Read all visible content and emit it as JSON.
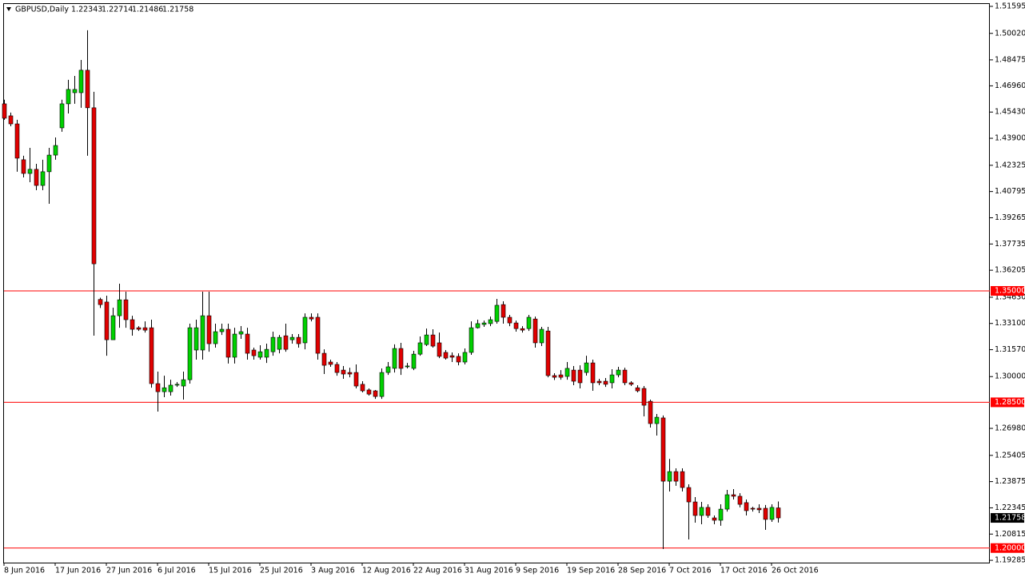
{
  "chart_data": {
    "type": "candlestick",
    "header": {
      "symbol": "GBPUSD,Daily",
      "values": [
        {
          "value": 1.22343,
          "label": "1.22343"
        },
        {
          "value": 1.22714,
          "label": "1.22714"
        },
        {
          "value": 1.21486,
          "label": "1.21486"
        },
        {
          "value": 1.21758,
          "label": "1.21758"
        }
      ]
    },
    "categories": [
      "8 Jun 2016",
      null,
      null,
      null,
      null,
      null,
      null,
      null,
      "17 Jun 2016",
      null,
      null,
      null,
      null,
      null,
      null,
      null,
      "27 Jun 2016",
      null,
      null,
      null,
      null,
      null,
      null,
      null,
      "6 Jul 2016",
      null,
      null,
      null,
      null,
      null,
      null,
      null,
      "15 Jul 2016",
      null,
      null,
      null,
      null,
      null,
      null,
      null,
      "25 Jul 2016",
      null,
      null,
      null,
      null,
      null,
      null,
      null,
      "3 Aug 2016",
      null,
      null,
      null,
      null,
      null,
      null,
      null,
      "12 Aug 2016",
      null,
      null,
      null,
      null,
      null,
      null,
      null,
      "22 Aug 2016",
      null,
      null,
      null,
      null,
      null,
      null,
      null,
      "31 Aug 2016",
      null,
      null,
      null,
      null,
      null,
      null,
      null,
      "9 Sep 2016",
      null,
      null,
      null,
      null,
      null,
      null,
      null,
      "19 Sep 2016",
      null,
      null,
      null,
      null,
      null,
      null,
      null,
      "28 Sep 2016",
      null,
      null,
      null,
      null,
      null,
      null,
      null,
      "7 Oct 2016",
      null,
      null,
      null,
      null,
      null,
      null,
      null,
      "17 Oct 2016",
      null,
      null,
      null,
      null,
      null,
      null,
      null,
      "26 Oct 2016",
      null
    ],
    "open": [
      1.4591,
      1.4521,
      1.4474,
      1.4265,
      1.4185,
      1.4209,
      1.4115,
      1.4195,
      1.4292,
      1.4451,
      1.4591,
      1.4656,
      1.4656,
      1.4787,
      1.4568,
      1.345,
      1.3435,
      1.3215,
      1.3355,
      1.3448,
      1.3332,
      1.3285,
      1.3285,
      1.3285,
      1.2959,
      1.2912,
      1.2912,
      1.295,
      1.2945,
      1.2982,
      1.3155,
      1.3155,
      1.3355,
      1.3192,
      1.3262,
      1.3276,
      1.3113,
      1.3248,
      1.3248,
      1.3155,
      1.3113,
      1.3113,
      1.3145,
      1.3159,
      1.3238,
      1.3215,
      1.3229,
      1.3197,
      1.3346,
      1.3346,
      1.3136,
      1.3085,
      1.3071,
      1.3038,
      1.3024,
      1.3024,
      1.2955,
      1.2922,
      1.2917,
      1.2884,
      1.3024,
      1.3048,
      1.3164,
      1.3057,
      1.3048,
      1.3131,
      1.3187,
      1.3243,
      1.3197,
      1.3141,
      1.3122,
      1.3118,
      1.3085,
      1.3141,
      1.3285,
      1.3304,
      1.3309,
      1.3322,
      1.342,
      1.3346,
      1.3313,
      1.328,
      1.328,
      1.3336,
      1.3197,
      1.3266,
      1.3006,
      1.301,
      1.3001,
      1.3038,
      1.3038,
      1.3024,
      1.308,
      1.2973,
      1.2973,
      1.2964,
      1.301,
      1.3038,
      1.2964,
      1.2935,
      1.2931,
      1.2856,
      1.2726,
      1.2759,
      1.239,
      1.2446,
      1.2446,
      1.2353,
      1.2269,
      1.219,
      1.2237,
      1.2176,
      1.2162,
      1.2227,
      1.2311,
      1.2302,
      1.2265,
      1.2232,
      1.2232,
      1.2232,
      1.2167,
      1.22343
    ],
    "high": [
      1.4615,
      1.454,
      1.4498,
      1.4288,
      1.4334,
      1.4241,
      1.4265,
      1.4334,
      1.4395,
      1.4615,
      1.4731,
      1.4754,
      1.4847,
      1.502,
      1.4661,
      1.346,
      1.3472,
      1.3402,
      1.3542,
      1.3495,
      1.3355,
      1.3294,
      1.3322,
      1.3332,
      1.3029,
      1.3005,
      1.2982,
      1.2968,
      1.3029,
      1.3309,
      1.3332,
      1.3495,
      1.3495,
      1.3309,
      1.3309,
      1.3309,
      1.3285,
      1.3295,
      1.3285,
      1.3169,
      1.3183,
      1.3192,
      1.3262,
      1.3243,
      1.3309,
      1.3248,
      1.3248,
      1.3369,
      1.3369,
      1.3369,
      1.3159,
      1.3099,
      1.3085,
      1.3062,
      1.3052,
      1.3071,
      1.2973,
      1.2931,
      1.2922,
      1.3048,
      1.3085,
      1.3188,
      1.3197,
      1.308,
      1.315,
      1.3234,
      1.328,
      1.3276,
      1.3257,
      1.3155,
      1.3141,
      1.3136,
      1.3164,
      1.3322,
      1.3332,
      1.3327,
      1.335,
      1.3453,
      1.3439,
      1.336,
      1.3327,
      1.3294,
      1.336,
      1.335,
      1.329,
      1.329,
      1.302,
      1.3038,
      1.3085,
      1.3062,
      1.3066,
      1.3122,
      1.3099,
      1.2987,
      1.2992,
      1.3043,
      1.3057,
      1.3052,
      1.2973,
      1.295,
      1.2945,
      1.2866,
      1.2782,
      1.2773,
      1.252,
      1.2465,
      1.2465,
      1.2372,
      1.2297,
      1.2269,
      1.2255,
      1.219,
      1.2255,
      1.2339,
      1.2344,
      1.232,
      1.2283,
      1.2241,
      1.2255,
      1.2251,
      1.2255,
      1.22714
    ],
    "low": [
      1.4498,
      1.446,
      1.4195,
      1.4162,
      1.4134,
      1.4087,
      1.4087,
      1.4008,
      1.4265,
      1.4428,
      1.4535,
      1.4591,
      1.4568,
      1.4288,
      1.3239,
      1.34,
      1.3122,
      1.3215,
      1.3285,
      1.3285,
      1.3239,
      1.3266,
      1.3257,
      1.2935,
      1.2796,
      1.288,
      1.2889,
      1.294,
      1.2866,
      1.2959,
      1.3099,
      1.3099,
      1.3145,
      1.3169,
      1.3243,
      1.3076,
      1.3076,
      1.322,
      1.3099,
      1.3099,
      1.3099,
      1.308,
      1.3122,
      1.3136,
      1.3145,
      1.3192,
      1.3169,
      1.3159,
      1.3322,
      1.3099,
      1.3015,
      1.3057,
      1.3005,
      1.2987,
      1.2996,
      1.2931,
      1.2908,
      1.2889,
      1.287,
      1.287,
      1.301,
      1.3024,
      1.301,
      1.3048,
      1.3038,
      1.3122,
      1.3178,
      1.3169,
      1.3108,
      1.3099,
      1.3085,
      1.3066,
      1.3071,
      1.3127,
      1.328,
      1.329,
      1.3294,
      1.3309,
      1.3309,
      1.3294,
      1.3262,
      1.3257,
      1.3266,
      1.3169,
      1.3178,
      1.2996,
      1.298,
      1.2982,
      1.2982,
      1.295,
      1.2931,
      1.3006,
      1.2917,
      1.295,
      1.294,
      1.2931,
      1.2996,
      1.295,
      1.2945,
      1.2908,
      1.2768,
      1.2703,
      1.2656,
      1.1994,
      1.233,
      1.2363,
      1.233,
      1.205,
      1.2148,
      1.2139,
      1.2176,
      1.2139,
      1.213,
      1.2213,
      1.2283,
      1.2237,
      1.219,
      1.2213,
      1.2204,
      1.2106,
      1.2153,
      1.21486
    ],
    "close": [
      1.4507,
      1.4474,
      1.4274,
      1.4185,
      1.4209,
      1.4115,
      1.4195,
      1.4292,
      1.4348,
      1.4591,
      1.4675,
      1.4675,
      1.4787,
      1.4568,
      1.3658,
      1.342,
      1.3215,
      1.3355,
      1.3448,
      1.3332,
      1.3276,
      1.3276,
      1.3271,
      1.2959,
      1.2912,
      1.2935,
      1.295,
      1.2955,
      1.2982,
      1.3285,
      1.3285,
      1.3355,
      1.3192,
      1.3262,
      1.3276,
      1.3113,
      1.3248,
      1.3262,
      1.3136,
      1.3122,
      1.3145,
      1.3159,
      1.3229,
      1.3229,
      1.3159,
      1.3229,
      1.3192,
      1.3346,
      1.3336,
      1.3136,
      1.3066,
      1.3071,
      1.3024,
      1.3015,
      1.3015,
      1.2945,
      1.2917,
      1.2898,
      1.2884,
      1.3024,
      1.3057,
      1.3164,
      1.3048,
      1.3062,
      1.3131,
      1.3197,
      1.3243,
      1.3178,
      1.3118,
      1.3108,
      1.3113,
      1.3085,
      1.3141,
      1.3285,
      1.3309,
      1.3313,
      1.3332,
      1.3416,
      1.3346,
      1.3313,
      1.328,
      1.3271,
      1.3346,
      1.3197,
      1.3276,
      1.3006,
      1.2996,
      1.2996,
      1.3048,
      1.2973,
      1.2964,
      1.308,
      1.2964,
      1.2964,
      1.2955,
      1.301,
      1.3038,
      1.2964,
      1.2955,
      1.2917,
      1.2833,
      1.2726,
      1.2763,
      1.239,
      1.2446,
      1.239,
      1.2353,
      1.2269,
      1.219,
      1.2237,
      1.219,
      1.2162,
      1.2227,
      1.2311,
      1.2302,
      1.2255,
      1.2218,
      1.2227,
      1.2223,
      1.2167,
      1.2237,
      1.21758
    ],
    "up_color": "#00d000",
    "down_color": "#e00000",
    "ylim": [
      1.1915,
      1.5178
    ],
    "yticks": [
      {
        "value": 1.51595,
        "label": "1.51595"
      },
      {
        "value": 1.5002,
        "label": "1.50020"
      },
      {
        "value": 1.48475,
        "label": "1.48475"
      },
      {
        "value": 1.4696,
        "label": "1.46960"
      },
      {
        "value": 1.4543,
        "label": "1.45430"
      },
      {
        "value": 1.439,
        "label": "1.43900"
      },
      {
        "value": 1.42325,
        "label": "1.42325"
      },
      {
        "value": 1.40795,
        "label": "1.40795"
      },
      {
        "value": 1.39265,
        "label": "1.39265"
      },
      {
        "value": 1.37735,
        "label": "1.37735"
      },
      {
        "value": 1.36205,
        "label": "1.36205"
      },
      {
        "value": 1.3463,
        "label": "1.34630"
      },
      {
        "value": 1.331,
        "label": "1.33100"
      },
      {
        "value": 1.3157,
        "label": "1.31570"
      },
      {
        "value": 1.3,
        "label": "1.30000"
      },
      {
        "value": 1.2698,
        "label": "1.26980"
      },
      {
        "value": 1.25405,
        "label": "1.25405"
      },
      {
        "value": 1.23875,
        "label": "1.23875"
      },
      {
        "value": 1.22345,
        "label": "1.22345"
      },
      {
        "value": 1.20815,
        "label": "1.20815"
      },
      {
        "value": 1.19285,
        "label": "1.19285"
      }
    ],
    "hlines": [
      {
        "value": 1.35,
        "label": "1.35000"
      },
      {
        "value": 1.285,
        "label": "1.28500"
      },
      {
        "value": 1.2,
        "label": "1.20000"
      }
    ],
    "hline_color": "#ff0000",
    "last_price": {
      "value": 1.21758,
      "label": "1.21758"
    }
  }
}
